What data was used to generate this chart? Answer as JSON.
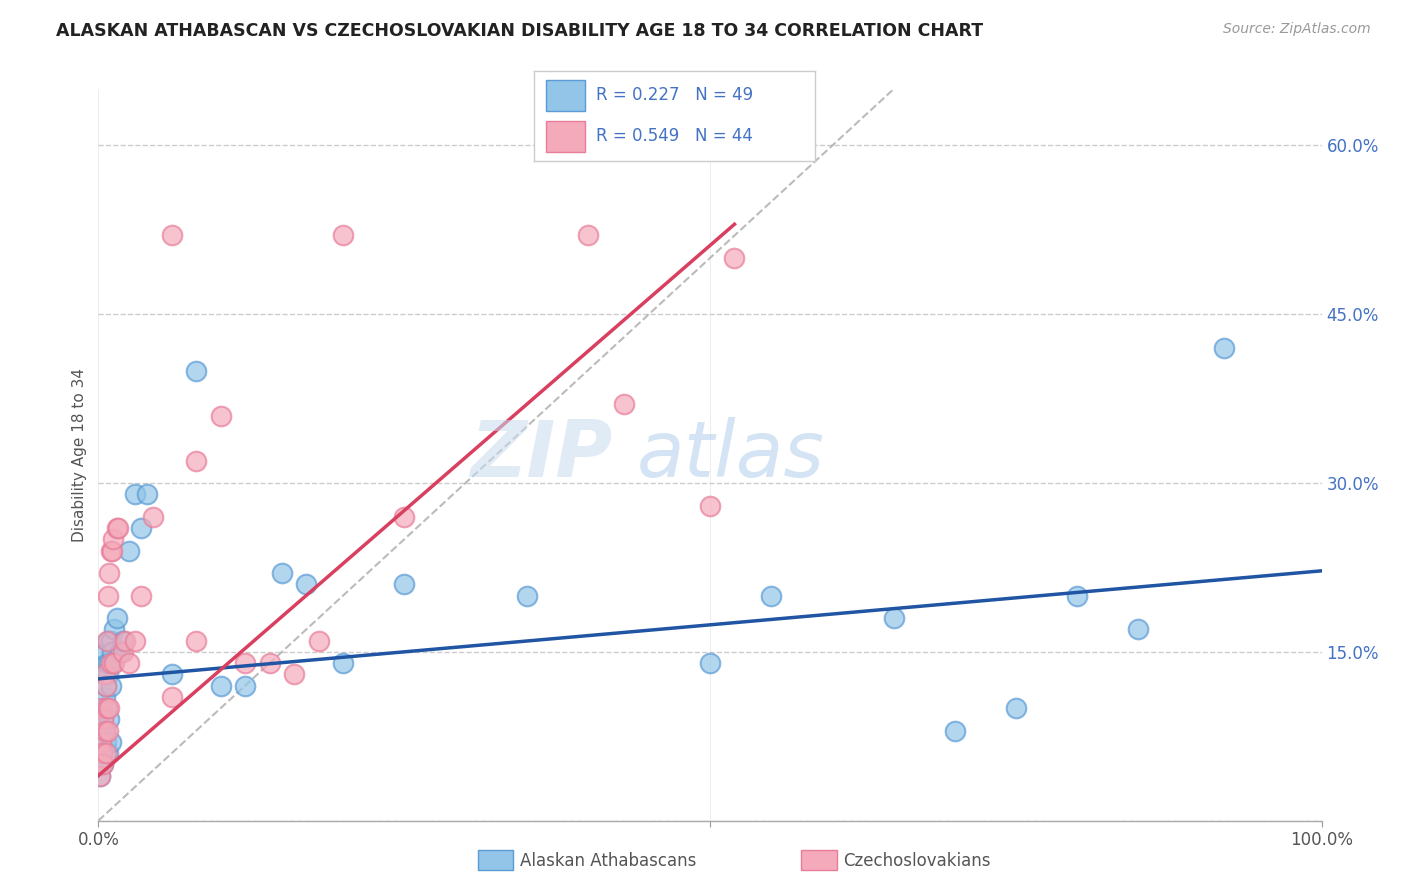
{
  "title": "ALASKAN ATHABASCAN VS CZECHOSLOVAKIAN DISABILITY AGE 18 TO 34 CORRELATION CHART",
  "source": "Source: ZipAtlas.com",
  "ylabel": "Disability Age 18 to 34",
  "xlim": [
    0,
    1.0
  ],
  "ylim": [
    0,
    0.65
  ],
  "blue_color": "#92C5E8",
  "blue_edge_color": "#5B9BD5",
  "pink_color": "#F4AABA",
  "pink_edge_color": "#E87D9A",
  "blue_line_color": "#2055A4",
  "pink_line_color": "#D94060",
  "legend_text_color": "#4472C4",
  "r_blue": 0.227,
  "n_blue": 49,
  "r_pink": 0.549,
  "n_pink": 44,
  "blue_scatter_x": [
    0.001,
    0.002,
    0.003,
    0.003,
    0.004,
    0.004,
    0.005,
    0.005,
    0.005,
    0.006,
    0.006,
    0.006,
    0.007,
    0.007,
    0.008,
    0.008,
    0.008,
    0.009,
    0.009,
    0.01,
    0.01,
    0.01,
    0.011,
    0.012,
    0.013,
    0.015,
    0.018,
    0.02,
    0.025,
    0.03,
    0.035,
    0.04,
    0.06,
    0.08,
    0.1,
    0.12,
    0.15,
    0.17,
    0.2,
    0.25,
    0.35,
    0.5,
    0.55,
    0.65,
    0.7,
    0.75,
    0.8,
    0.85,
    0.92
  ],
  "blue_scatter_y": [
    0.04,
    0.07,
    0.06,
    0.1,
    0.05,
    0.09,
    0.08,
    0.11,
    0.13,
    0.07,
    0.12,
    0.15,
    0.1,
    0.14,
    0.06,
    0.13,
    0.16,
    0.09,
    0.14,
    0.07,
    0.12,
    0.16,
    0.15,
    0.14,
    0.17,
    0.18,
    0.15,
    0.16,
    0.24,
    0.29,
    0.26,
    0.29,
    0.13,
    0.4,
    0.12,
    0.12,
    0.22,
    0.21,
    0.14,
    0.21,
    0.2,
    0.14,
    0.2,
    0.18,
    0.08,
    0.1,
    0.2,
    0.17,
    0.42
  ],
  "pink_scatter_x": [
    0.001,
    0.002,
    0.003,
    0.003,
    0.004,
    0.004,
    0.005,
    0.005,
    0.006,
    0.006,
    0.007,
    0.007,
    0.008,
    0.008,
    0.009,
    0.009,
    0.01,
    0.01,
    0.011,
    0.012,
    0.013,
    0.015,
    0.016,
    0.02,
    0.022,
    0.025,
    0.03,
    0.035,
    0.045,
    0.06,
    0.08,
    0.1,
    0.12,
    0.14,
    0.16,
    0.18,
    0.2,
    0.25,
    0.4,
    0.43,
    0.5,
    0.52,
    0.08,
    0.06
  ],
  "pink_scatter_y": [
    0.04,
    0.07,
    0.06,
    0.1,
    0.05,
    0.09,
    0.08,
    0.13,
    0.06,
    0.12,
    0.1,
    0.16,
    0.08,
    0.2,
    0.1,
    0.22,
    0.14,
    0.24,
    0.24,
    0.25,
    0.14,
    0.26,
    0.26,
    0.15,
    0.16,
    0.14,
    0.16,
    0.2,
    0.27,
    0.11,
    0.16,
    0.36,
    0.14,
    0.14,
    0.13,
    0.16,
    0.52,
    0.27,
    0.52,
    0.37,
    0.28,
    0.5,
    0.32,
    0.52
  ],
  "blue_line_x0": 0.0,
  "blue_line_y0": 0.126,
  "blue_line_x1": 1.0,
  "blue_line_y1": 0.222,
  "pink_line_x0": 0.0,
  "pink_line_y0": 0.04,
  "pink_line_x1": 0.52,
  "pink_line_y1": 0.53,
  "ref_line_x0": 0.0,
  "ref_line_y0": 0.0,
  "ref_line_x1": 0.65,
  "ref_line_y1": 0.65,
  "watermark_zip": "ZIP",
  "watermark_atlas": "atlas",
  "background_color": "#FFFFFF",
  "grid_color": "#CCCCCC"
}
